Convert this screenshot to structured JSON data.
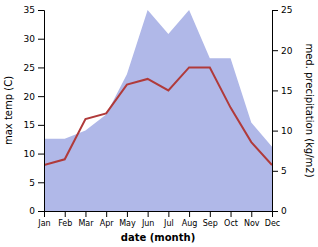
{
  "chart_data": {
    "type": "line",
    "categories": [
      "Jan",
      "Feb",
      "Mar",
      "Apr",
      "May",
      "Jun",
      "Jul",
      "Aug",
      "Sep",
      "Oct",
      "Nov",
      "Dec"
    ],
    "series": [
      {
        "type": "area",
        "color": "#b0b8e8",
        "axis": "y2",
        "values": [
          9,
          9,
          10,
          12,
          17,
          25,
          22,
          25,
          19,
          19,
          11,
          8
        ]
      },
      {
        "type": "line",
        "color": "#b03a3a",
        "values": [
          8,
          9,
          16,
          17,
          22,
          23,
          21,
          25,
          25,
          18,
          12,
          8
        ]
      }
    ],
    "xlabel": "date (month)",
    "ylabel": "max temp (C)",
    "y2label": "med. precipitation (kg/m2)",
    "ylim": [
      0,
      35
    ],
    "yticks": [
      0,
      5,
      10,
      15,
      20,
      25,
      30,
      35
    ],
    "y2lim": [
      0,
      25
    ],
    "y2ticks": [
      0,
      5,
      10,
      15,
      20,
      25
    ],
    "grid": false
  }
}
